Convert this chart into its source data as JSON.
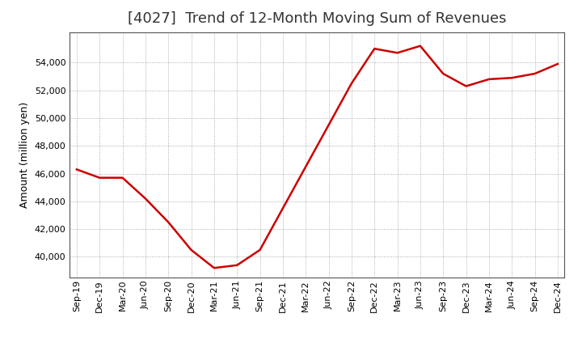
{
  "title": "[4027]  Trend of 12-Month Moving Sum of Revenues",
  "ylabel": "Amount (million yen)",
  "line_color": "#CC0000",
  "background_color": "#FFFFFF",
  "plot_bg_color": "#FFFFFF",
  "grid_color": "#999999",
  "x_labels": [
    "Sep-19",
    "Dec-19",
    "Mar-20",
    "Jun-20",
    "Sep-20",
    "Dec-20",
    "Mar-21",
    "Jun-21",
    "Sep-21",
    "Dec-21",
    "Mar-22",
    "Jun-22",
    "Sep-22",
    "Dec-22",
    "Mar-23",
    "Jun-23",
    "Sep-23",
    "Dec-23",
    "Mar-24",
    "Jun-24",
    "Sep-24",
    "Dec-24"
  ],
  "values": [
    46300,
    45700,
    45700,
    44200,
    42500,
    40500,
    39200,
    39400,
    40500,
    43500,
    46500,
    49500,
    52500,
    55000,
    54700,
    55200,
    53200,
    52300,
    52800,
    52900,
    53200,
    53900
  ],
  "ylim_min": 38500,
  "ylim_max": 56200,
  "yticks": [
    40000,
    42000,
    44000,
    46000,
    48000,
    50000,
    52000,
    54000
  ],
  "line_width": 1.8,
  "title_fontsize": 13,
  "ylabel_fontsize": 9,
  "tick_fontsize": 8
}
